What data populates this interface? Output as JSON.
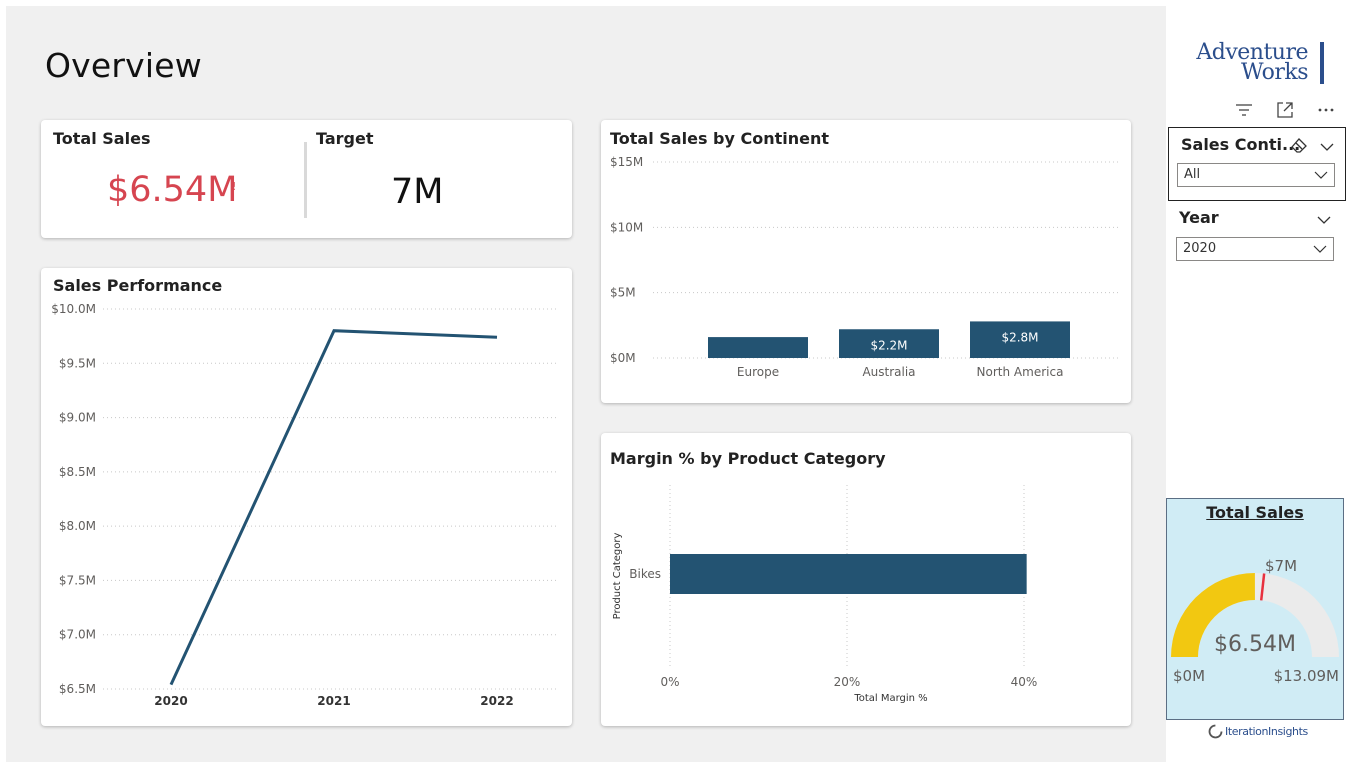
{
  "page": {
    "title": "Overview"
  },
  "kpi": {
    "total_sales_label": "Total Sales",
    "total_sales_value": "$6.54M",
    "alert_mark": "!",
    "target_label": "Target",
    "target_value": "7M"
  },
  "colors": {
    "bar": "#235372",
    "line": "#235372",
    "kpi_red": "#d64550",
    "gauge_fill": "#f2c811",
    "gauge_track": "#ebebeb",
    "gauge_target": "#e8303e",
    "gauge_bg": "#d0ecf5"
  },
  "sales_performance": {
    "title": "Sales Performance",
    "chart_data": {
      "type": "line",
      "x": [
        "2020",
        "2021",
        "2022"
      ],
      "series": [
        {
          "values": [
            6.54,
            9.8,
            9.74
          ]
        }
      ],
      "y_ticks": [
        "$10.0M",
        "$9.5M",
        "$9.0M",
        "$8.5M",
        "$8.0M",
        "$7.5M",
        "$7.0M",
        "$6.5M"
      ],
      "ylim": [
        6.5,
        10.0
      ],
      "grid": true
    }
  },
  "sales_by_continent": {
    "title": "Total Sales by Continent",
    "chart_data": {
      "type": "bar",
      "categories": [
        "Europe",
        "Australia",
        "North America"
      ],
      "values": [
        1.6,
        2.2,
        2.8
      ],
      "data_labels": [
        "",
        "$2.2M",
        "$2.8M"
      ],
      "y_ticks": [
        "$15M",
        "$10M",
        "$5M",
        "$0M"
      ],
      "ylim": [
        0,
        15
      ],
      "grid": true
    }
  },
  "margin_by_category": {
    "title": "Margin % by Product Category",
    "chart_data": {
      "type": "bar",
      "orientation": "horizontal",
      "categories": [
        "Bikes"
      ],
      "values": [
        40.3
      ],
      "x_ticks": [
        "0%",
        "20%",
        "40%"
      ],
      "xlim": [
        0,
        45
      ],
      "xlabel": "Total Margin %",
      "ylabel": "Product Category",
      "grid": true
    }
  },
  "sidebar": {
    "logo_line1": "Adventure",
    "logo_line2": "Works",
    "filters_icon": "filter-icon",
    "focus_icon": "focus-mode-icon",
    "more_icon": "more-options-icon",
    "slicer_continent": {
      "label": "Sales Conti...",
      "value": "All"
    },
    "slicer_year": {
      "label": "Year",
      "value": "2020"
    },
    "gauge": {
      "title": "Total Sales",
      "value_label": "$6.54M",
      "target_label": "$7M",
      "min_label": "$0M",
      "max_label": "$13.09M",
      "chart_data": {
        "type": "gauge",
        "value": 6.54,
        "target": 7,
        "min": 0,
        "max": 13.09
      }
    },
    "footer_brand": "IterationInsights"
  }
}
